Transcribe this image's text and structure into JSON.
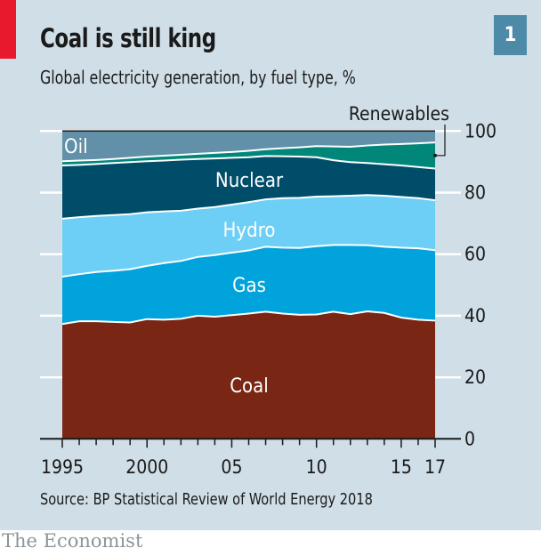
{
  "header": {
    "title": "Coal is still king",
    "subtitle": "Global electricity generation, by fuel type, %",
    "badge": "1"
  },
  "footer": {
    "source": "Source: BP Statistical Review of World Energy 2018",
    "logo": "The Economist"
  },
  "colors": {
    "coal": "#7a2614",
    "gas": "#00a3dc",
    "hydro": "#6dcff6",
    "nuclear": "#004d69",
    "renewables": "#00877a",
    "oil": "#6190a8",
    "background": "#cfdee7",
    "accent": "#e8192c"
  },
  "chart_data": {
    "type": "area",
    "stacked": true,
    "title": "Coal is still king",
    "subtitle": "Global electricity generation, by fuel type, %",
    "xlabel": "",
    "ylabel": "%",
    "ylim": [
      0,
      100
    ],
    "y_ticks": [
      0,
      20,
      40,
      60,
      80,
      100
    ],
    "y_axis_position": "right",
    "grid": true,
    "x": [
      1995,
      1996,
      1997,
      1998,
      1999,
      2000,
      2001,
      2002,
      2003,
      2004,
      2005,
      2006,
      2007,
      2008,
      2009,
      2010,
      2011,
      2012,
      2013,
      2014,
      2015,
      2016,
      2017
    ],
    "x_tick_values": [
      1995,
      2000,
      2005,
      2010,
      2015,
      2017
    ],
    "x_tick_labels": [
      "1995",
      "2000",
      "05",
      "10",
      "15",
      "17"
    ],
    "series": [
      {
        "name": "Coal",
        "key": "coal",
        "values": [
          37.3,
          38.2,
          38.2,
          38.0,
          37.8,
          38.9,
          38.7,
          39.0,
          40.0,
          39.7,
          40.2,
          40.7,
          41.3,
          40.7,
          40.3,
          40.4,
          41.3,
          40.5,
          41.4,
          40.9,
          39.4,
          38.7,
          38.4
        ]
      },
      {
        "name": "Gas",
        "key": "gas",
        "values": [
          15.4,
          15.3,
          16.0,
          16.6,
          17.3,
          17.3,
          18.4,
          18.8,
          19.1,
          20.0,
          20.3,
          20.5,
          21.1,
          21.4,
          21.7,
          22.2,
          21.7,
          22.5,
          21.5,
          21.5,
          22.7,
          23.2,
          22.9
        ]
      },
      {
        "name": "Hydro",
        "key": "hydro",
        "values": [
          18.8,
          18.5,
          18.2,
          18.1,
          17.9,
          17.4,
          16.8,
          16.3,
          15.7,
          15.6,
          15.6,
          15.7,
          15.4,
          16.1,
          16.3,
          16.1,
          15.8,
          16.0,
          16.3,
          16.6,
          16.5,
          16.3,
          16.2
        ]
      },
      {
        "name": "Nuclear",
        "key": "nuclear",
        "values": [
          17.3,
          17.0,
          16.9,
          16.9,
          16.9,
          16.6,
          16.5,
          16.6,
          16.1,
          15.8,
          15.2,
          14.6,
          14.1,
          13.6,
          13.4,
          12.8,
          11.7,
          10.9,
          10.4,
          10.2,
          10.2,
          10.1,
          10.3
        ]
      },
      {
        "name": "Renewables",
        "key": "renewables",
        "values": [
          1.4,
          1.4,
          1.3,
          1.3,
          1.4,
          1.5,
          1.6,
          1.6,
          1.7,
          1.8,
          1.9,
          2.1,
          2.2,
          2.6,
          3.0,
          3.6,
          4.5,
          5.0,
          5.7,
          6.4,
          7.0,
          7.7,
          8.5
        ]
      },
      {
        "name": "Oil",
        "key": "oil",
        "values": [
          9.8,
          9.6,
          9.4,
          9.1,
          8.7,
          8.3,
          8.0,
          7.7,
          7.4,
          7.1,
          6.8,
          6.4,
          5.9,
          5.6,
          5.3,
          4.9,
          5.0,
          5.1,
          4.7,
          4.4,
          4.2,
          4.0,
          3.7
        ]
      }
    ]
  }
}
